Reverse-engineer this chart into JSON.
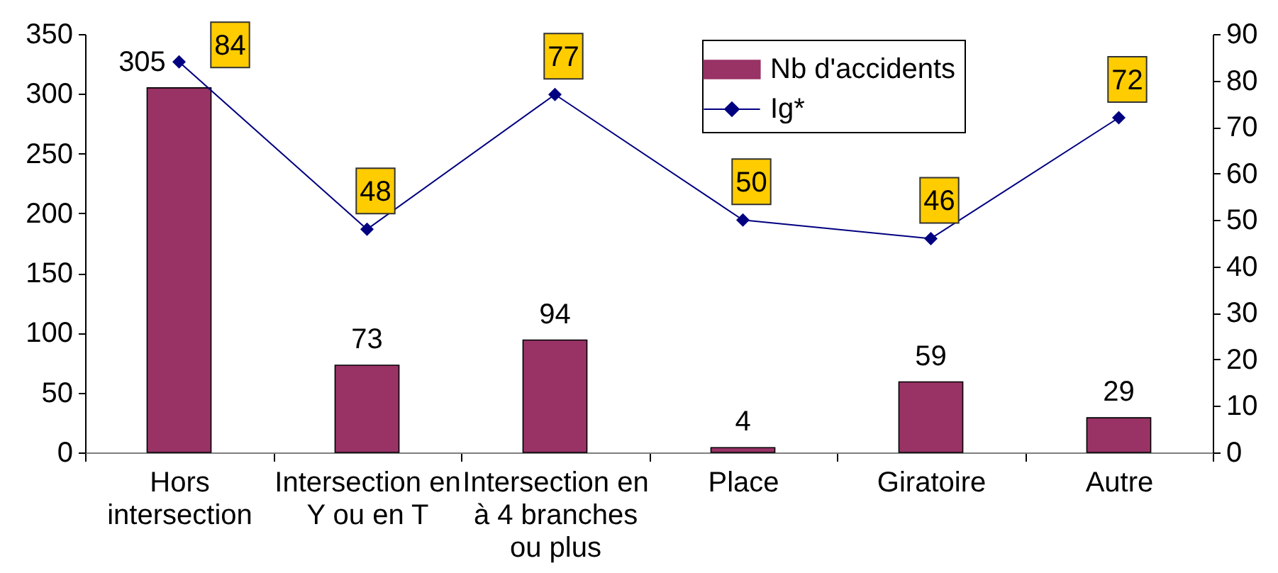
{
  "chart_data": {
    "type": "bar",
    "categories": [
      "Hors\nintersection",
      "Intersection en\nY ou en T",
      "Intersection en\nà 4 branches\nou plus",
      "Place",
      "Giratoire",
      "Autre"
    ],
    "series": [
      {
        "name": "Nb d'accidents",
        "color": "#993366",
        "values": [
          305,
          73,
          94,
          4,
          59,
          29
        ]
      },
      {
        "name": "Ig*",
        "type": "line",
        "axis": "y2",
        "color": "#000080",
        "values": [
          84,
          48,
          77,
          50,
          46,
          72
        ]
      }
    ],
    "ylim": [
      0,
      350
    ],
    "yticks": [
      0,
      50,
      100,
      150,
      200,
      250,
      300,
      350
    ],
    "y2lim": [
      0,
      90
    ],
    "y2ticks": [
      0,
      10,
      20,
      30,
      40,
      50,
      60,
      70,
      80,
      90
    ],
    "marker": "diamond",
    "data_labels": true,
    "legend": "top right"
  }
}
